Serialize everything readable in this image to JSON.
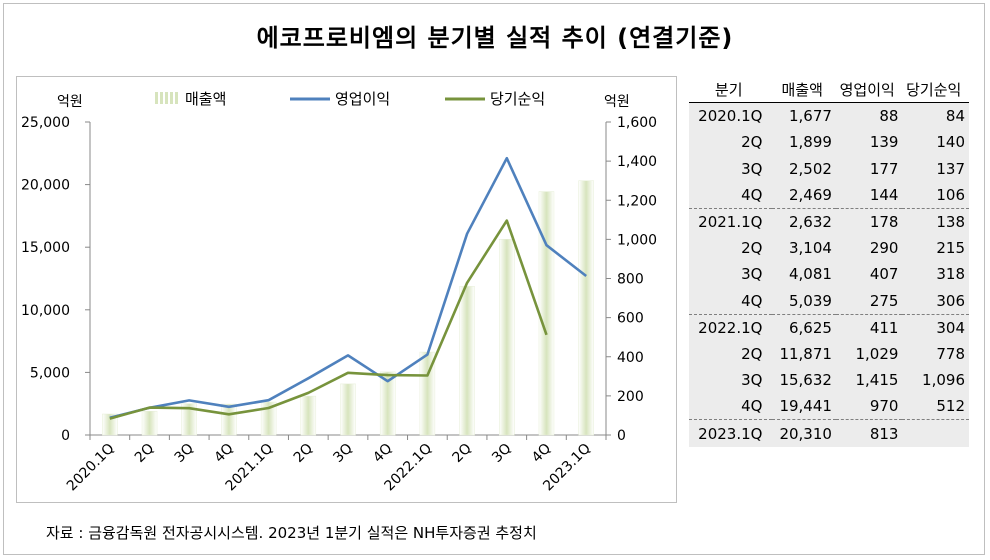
{
  "title": "에코프로비엠의 분기별 실적 추이 (연결기준)",
  "source": "자료 : 금융감독원 전자공시시스템. 2023년 1분기 실적은 NH투자증권 추정치",
  "chart_data": {
    "type": "bar+line",
    "title": "에코프로비엠의 분기별 실적 추이 (연결기준)",
    "categories": [
      "2020.1Q",
      "2Q",
      "3Q",
      "4Q",
      "2021.1Q",
      "2Q",
      "3Q",
      "4Q",
      "2022.1Q",
      "2Q",
      "3Q",
      "4Q",
      "2023.1Q"
    ],
    "left_axis": {
      "unit": "억원",
      "ylim": [
        0,
        25000
      ],
      "ticks": [
        "0",
        "5,000",
        "10,000",
        "15,000",
        "20,000",
        "25,000"
      ],
      "tick_values": [
        0,
        5000,
        10000,
        15000,
        20000,
        25000
      ]
    },
    "right_axis": {
      "unit": "억원",
      "ylim": [
        0,
        1600
      ],
      "ticks": [
        "0",
        "200",
        "400",
        "600",
        "800",
        "1,000",
        "1,200",
        "1,400",
        "1,600"
      ],
      "tick_values": [
        0,
        200,
        400,
        600,
        800,
        1000,
        1200,
        1400,
        1600
      ]
    },
    "series": [
      {
        "name": "매출액",
        "type": "bar",
        "axis": "left",
        "color": "#d7e4bd",
        "values": [
          1677,
          1899,
          2502,
          2469,
          2632,
          3104,
          4081,
          5039,
          6625,
          11871,
          15632,
          19441,
          20310
        ]
      },
      {
        "name": "영업이익",
        "type": "line",
        "axis": "right",
        "color": "#4f81bd",
        "values": [
          88,
          139,
          177,
          144,
          178,
          290,
          407,
          275,
          411,
          1029,
          1415,
          970,
          813
        ]
      },
      {
        "name": "당기순익",
        "type": "line",
        "axis": "right",
        "color": "#77933c",
        "values": [
          84,
          140,
          137,
          106,
          138,
          215,
          318,
          306,
          304,
          778,
          1096,
          512,
          null
        ]
      }
    ],
    "legend_position": "top",
    "grid": false
  },
  "table": {
    "headers": [
      "분기",
      "매출액",
      "영업이익",
      "당기순익"
    ],
    "groups": [
      [
        [
          "2020.1Q",
          "1,677",
          "88",
          "84"
        ],
        [
          "2Q",
          "1,899",
          "139",
          "140"
        ],
        [
          "3Q",
          "2,502",
          "177",
          "137"
        ],
        [
          "4Q",
          "2,469",
          "144",
          "106"
        ]
      ],
      [
        [
          "2021.1Q",
          "2,632",
          "178",
          "138"
        ],
        [
          "2Q",
          "3,104",
          "290",
          "215"
        ],
        [
          "3Q",
          "4,081",
          "407",
          "318"
        ],
        [
          "4Q",
          "5,039",
          "275",
          "306"
        ]
      ],
      [
        [
          "2022.1Q",
          "6,625",
          "411",
          "304"
        ],
        [
          "2Q",
          "11,871",
          "1,029",
          "778"
        ],
        [
          "3Q",
          "15,632",
          "1,415",
          "1,096"
        ],
        [
          "4Q",
          "19,441",
          "970",
          "512"
        ]
      ],
      [
        [
          "2023.1Q",
          "20,310",
          "813",
          ""
        ]
      ]
    ]
  }
}
